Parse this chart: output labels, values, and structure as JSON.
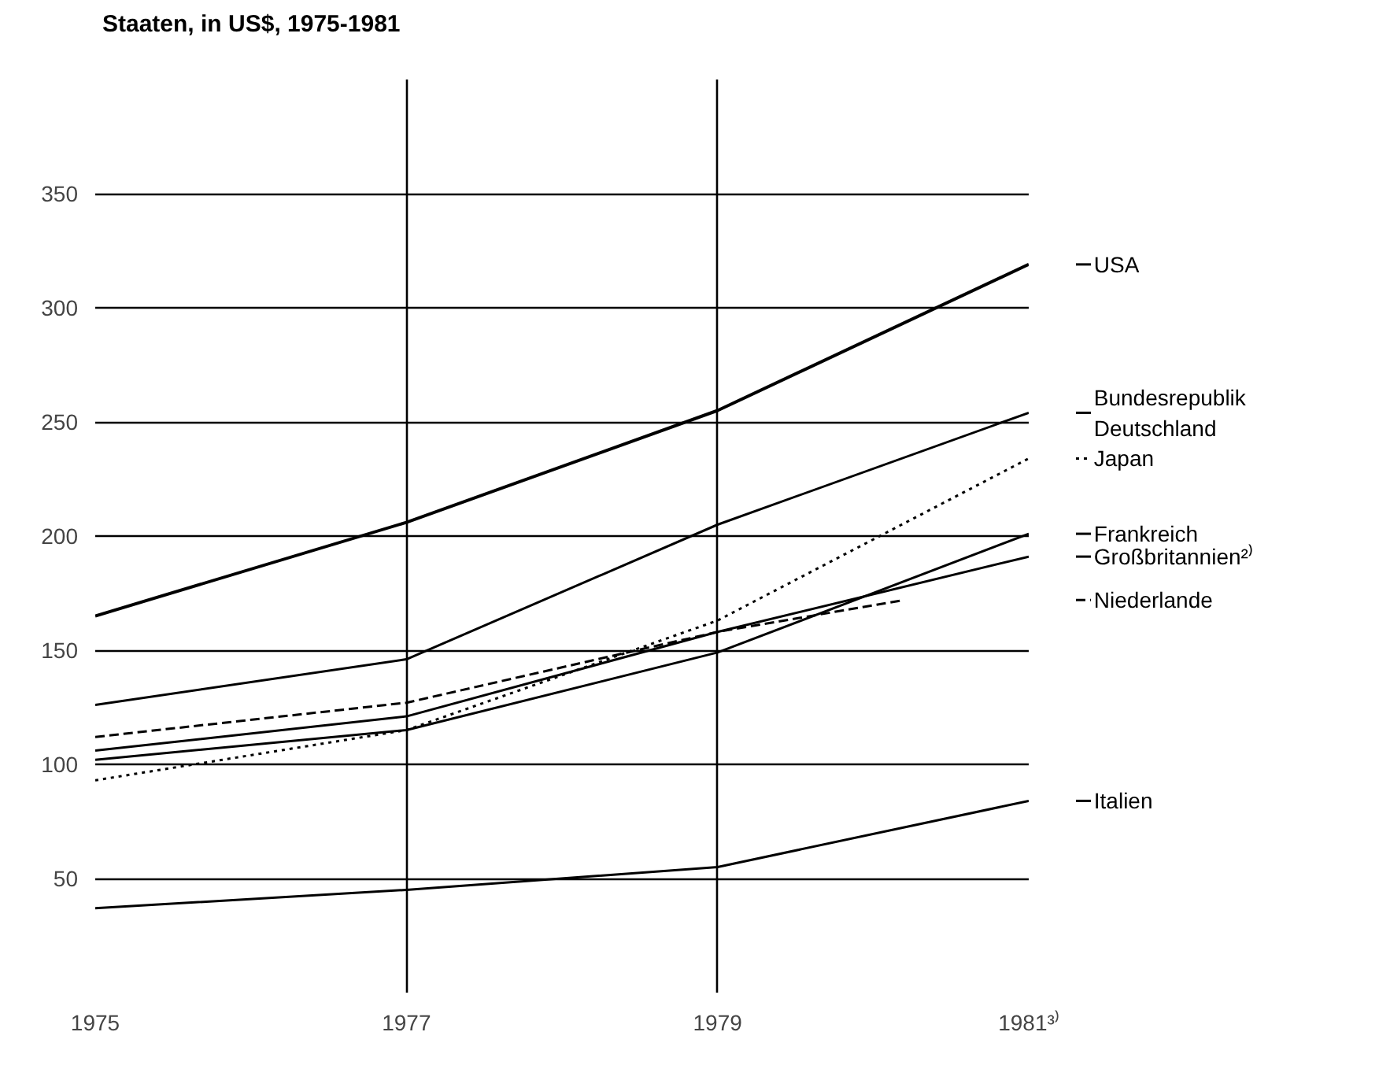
{
  "chart_data": {
    "type": "line",
    "title": "Staaten, in US$, 1975-1981",
    "x": [
      1975,
      1977,
      1979,
      1981
    ],
    "xlim": [
      1975,
      1981
    ],
    "xticks": [
      1975,
      1977,
      1979,
      {
        "value": 1981,
        "label": "1981³⁾"
      }
    ],
    "ylim": [
      0,
      400
    ],
    "yticks": [
      50,
      100,
      150,
      200,
      250,
      300,
      350
    ],
    "grid": true,
    "legend": "right",
    "series": [
      {
        "name": "USA",
        "color": "#000000",
        "values": [
          165,
          206,
          255,
          319
        ],
        "line_style": "solid"
      },
      {
        "name": "Bundesrepublik\nDeutschland",
        "color": "#000000",
        "values": [
          126,
          146,
          205,
          254
        ],
        "line_style": "solid"
      },
      {
        "name": "Japan",
        "color": "#000000",
        "values": [
          93,
          115,
          163,
          234
        ],
        "line_style": "dotted"
      },
      {
        "name": "Frankreich",
        "color": "#000000",
        "values": [
          102,
          115,
          149,
          201
        ],
        "line_style": "solid"
      },
      {
        "name": "Großbritannien²⁾",
        "color": "#000000",
        "values": [
          106,
          121,
          158,
          191
        ],
        "line_style": "solid"
      },
      {
        "name": "Niederlande",
        "color": "#000000",
        "x": [
          1975,
          1977,
          1979,
          1980.2
        ],
        "values": [
          112,
          127,
          158,
          172
        ],
        "line_style": "dashed"
      },
      {
        "name": "Italien",
        "color": "#000000",
        "values": [
          37,
          45,
          55,
          84
        ],
        "line_style": "solid"
      }
    ]
  }
}
